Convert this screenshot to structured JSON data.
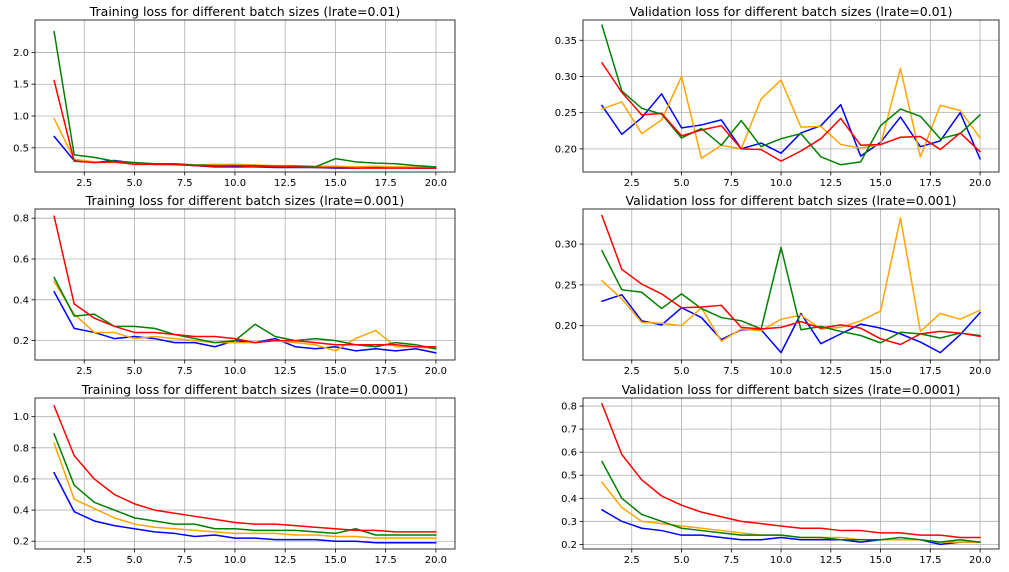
{
  "colors": {
    "blue": "#0000ff",
    "orange": "#ffa500",
    "green": "#008000",
    "red": "#ff0000"
  },
  "chart_data": [
    {
      "type": "line",
      "title": "Training loss for different batch sizes (lrate=0.01)",
      "xlabel": "",
      "ylabel": "",
      "grid": true,
      "xlim": [
        0.05,
        20.95
      ],
      "ylim": [
        0.12,
        2.51
      ],
      "xticks": [
        2.5,
        5.0,
        7.5,
        10.0,
        12.5,
        15.0,
        17.5,
        20.0
      ],
      "xtick_labels": [
        "2.5",
        "5.0",
        "7.5",
        "10.0",
        "12.5",
        "15.0",
        "17.5",
        "20.0"
      ],
      "yticks": [
        0.5,
        1.0,
        1.5,
        2.0
      ],
      "ytick_labels": [
        "0.5",
        "1.0",
        "1.5",
        "2.0"
      ],
      "x": [
        1,
        2,
        3,
        4,
        5,
        6,
        7,
        8,
        9,
        10,
        11,
        12,
        13,
        14,
        15,
        16,
        17,
        18,
        19,
        20
      ],
      "series": [
        {
          "color": "#0000ff",
          "values": [
            0.68,
            0.3,
            0.27,
            0.3,
            0.26,
            0.24,
            0.24,
            0.22,
            0.2,
            0.2,
            0.2,
            0.19,
            0.19,
            0.19,
            0.18,
            0.18,
            0.2,
            0.19,
            0.18,
            0.18
          ]
        },
        {
          "color": "#ffa500",
          "values": [
            0.96,
            0.32,
            0.28,
            0.27,
            0.25,
            0.24,
            0.23,
            0.23,
            0.24,
            0.24,
            0.23,
            0.22,
            0.22,
            0.21,
            0.21,
            0.2,
            0.21,
            0.2,
            0.2,
            0.2
          ]
        },
        {
          "color": "#008000",
          "values": [
            2.33,
            0.39,
            0.35,
            0.29,
            0.27,
            0.25,
            0.25,
            0.23,
            0.22,
            0.22,
            0.22,
            0.21,
            0.21,
            0.2,
            0.33,
            0.28,
            0.26,
            0.25,
            0.22,
            0.2
          ]
        },
        {
          "color": "#ff0000",
          "values": [
            1.56,
            0.29,
            0.27,
            0.28,
            0.24,
            0.24,
            0.24,
            0.22,
            0.21,
            0.22,
            0.2,
            0.2,
            0.2,
            0.19,
            0.19,
            0.18,
            0.18,
            0.18,
            0.18,
            0.18
          ]
        }
      ]
    },
    {
      "type": "line",
      "title": "Validation loss for different batch sizes (lrate=0.01)",
      "xlabel": "",
      "ylabel": "",
      "grid": true,
      "xlim": [
        0.05,
        20.95
      ],
      "ylim": [
        0.168,
        0.378
      ],
      "xticks": [
        2.5,
        5.0,
        7.5,
        10.0,
        12.5,
        15.0,
        17.5,
        20.0
      ],
      "xtick_labels": [
        "2.5",
        "5.0",
        "7.5",
        "10.0",
        "12.5",
        "15.0",
        "17.5",
        "20.0"
      ],
      "yticks": [
        0.2,
        0.25,
        0.3,
        0.35
      ],
      "ytick_labels": [
        "0.20",
        "0.25",
        "0.30",
        "0.35"
      ],
      "x": [
        1,
        2,
        3,
        4,
        5,
        6,
        7,
        8,
        9,
        10,
        11,
        12,
        13,
        14,
        15,
        16,
        17,
        18,
        19,
        20
      ],
      "series": [
        {
          "color": "#0000ff",
          "values": [
            0.26,
            0.22,
            0.243,
            0.276,
            0.229,
            0.233,
            0.24,
            0.2,
            0.208,
            0.194,
            0.222,
            0.232,
            0.261,
            0.19,
            0.209,
            0.244,
            0.203,
            0.211,
            0.25,
            0.186
          ]
        },
        {
          "color": "#ffa500",
          "values": [
            0.255,
            0.265,
            0.221,
            0.24,
            0.3,
            0.187,
            0.205,
            0.2,
            0.269,
            0.295,
            0.23,
            0.231,
            0.206,
            0.201,
            0.206,
            0.311,
            0.189,
            0.26,
            0.253,
            0.215
          ]
        },
        {
          "color": "#008000",
          "values": [
            0.371,
            0.28,
            0.256,
            0.248,
            0.215,
            0.228,
            0.205,
            0.239,
            0.203,
            0.214,
            0.221,
            0.189,
            0.178,
            0.182,
            0.232,
            0.255,
            0.245,
            0.214,
            0.221,
            0.247
          ]
        },
        {
          "color": "#ff0000",
          "values": [
            0.319,
            0.278,
            0.247,
            0.249,
            0.218,
            0.226,
            0.232,
            0.2,
            0.199,
            0.183,
            0.197,
            0.214,
            0.242,
            0.205,
            0.206,
            0.216,
            0.217,
            0.199,
            0.222,
            0.196
          ]
        }
      ]
    },
    {
      "type": "line",
      "title": "Training loss for different batch sizes (lrate=0.001)",
      "xlabel": "",
      "ylabel": "",
      "grid": true,
      "xlim": [
        0.05,
        20.95
      ],
      "ylim": [
        0.105,
        0.845
      ],
      "xticks": [
        2.5,
        5.0,
        7.5,
        10.0,
        12.5,
        15.0,
        17.5,
        20.0
      ],
      "xtick_labels": [
        "2.5",
        "5.0",
        "7.5",
        "10.0",
        "12.5",
        "15.0",
        "17.5",
        "20.0"
      ],
      "yticks": [
        0.2,
        0.4,
        0.6,
        0.8
      ],
      "ytick_labels": [
        "0.2",
        "0.4",
        "0.6",
        "0.8"
      ],
      "x": [
        1,
        2,
        3,
        4,
        5,
        6,
        7,
        8,
        9,
        10,
        11,
        12,
        13,
        14,
        15,
        16,
        17,
        18,
        19,
        20
      ],
      "series": [
        {
          "color": "#0000ff",
          "values": [
            0.44,
            0.26,
            0.24,
            0.21,
            0.22,
            0.21,
            0.19,
            0.19,
            0.17,
            0.2,
            0.19,
            0.21,
            0.17,
            0.16,
            0.17,
            0.15,
            0.16,
            0.15,
            0.16,
            0.14
          ]
        },
        {
          "color": "#ffa500",
          "values": [
            0.49,
            0.33,
            0.24,
            0.24,
            0.21,
            0.22,
            0.21,
            0.2,
            0.19,
            0.19,
            0.19,
            0.2,
            0.19,
            0.18,
            0.15,
            0.21,
            0.25,
            0.17,
            0.17,
            0.16
          ]
        },
        {
          "color": "#008000",
          "values": [
            0.51,
            0.32,
            0.33,
            0.27,
            0.27,
            0.26,
            0.23,
            0.21,
            0.19,
            0.2,
            0.28,
            0.22,
            0.2,
            0.21,
            0.2,
            0.18,
            0.17,
            0.19,
            0.18,
            0.16
          ]
        },
        {
          "color": "#ff0000",
          "values": [
            0.81,
            0.38,
            0.31,
            0.27,
            0.24,
            0.24,
            0.23,
            0.22,
            0.22,
            0.21,
            0.19,
            0.2,
            0.2,
            0.19,
            0.18,
            0.18,
            0.18,
            0.18,
            0.17,
            0.17
          ]
        }
      ]
    },
    {
      "type": "line",
      "title": "Validation loss for different batch sizes (lrate=0.001)",
      "xlabel": "",
      "ylabel": "",
      "grid": true,
      "xlim": [
        0.05,
        20.95
      ],
      "ylim": [
        0.158,
        0.343
      ],
      "xticks": [
        2.5,
        5.0,
        7.5,
        10.0,
        12.5,
        15.0,
        17.5,
        20.0
      ],
      "xtick_labels": [
        "2.5",
        "5.0",
        "7.5",
        "10.0",
        "12.5",
        "15.0",
        "17.5",
        "20.0"
      ],
      "yticks": [
        0.2,
        0.25,
        0.3
      ],
      "ytick_labels": [
        "0.20",
        "0.25",
        "0.30"
      ],
      "x": [
        1,
        2,
        3,
        4,
        5,
        6,
        7,
        8,
        9,
        10,
        11,
        12,
        13,
        14,
        15,
        16,
        17,
        18,
        19,
        20
      ],
      "series": [
        {
          "color": "#0000ff",
          "values": [
            0.23,
            0.238,
            0.206,
            0.201,
            0.222,
            0.21,
            0.183,
            0.195,
            0.195,
            0.167,
            0.215,
            0.178,
            0.19,
            0.202,
            0.197,
            0.19,
            0.18,
            0.167,
            0.189,
            0.216
          ]
        },
        {
          "color": "#ffa500",
          "values": [
            0.255,
            0.233,
            0.204,
            0.203,
            0.2,
            0.222,
            0.181,
            0.196,
            0.194,
            0.208,
            0.213,
            0.196,
            0.198,
            0.206,
            0.218,
            0.332,
            0.193,
            0.215,
            0.208,
            0.219
          ]
        },
        {
          "color": "#008000",
          "values": [
            0.292,
            0.244,
            0.241,
            0.221,
            0.239,
            0.221,
            0.21,
            0.206,
            0.196,
            0.296,
            0.195,
            0.199,
            0.193,
            0.188,
            0.179,
            0.192,
            0.19,
            0.185,
            0.191,
            0.188
          ]
        },
        {
          "color": "#ff0000",
          "values": [
            0.335,
            0.269,
            0.251,
            0.239,
            0.222,
            0.223,
            0.225,
            0.198,
            0.196,
            0.198,
            0.205,
            0.197,
            0.201,
            0.197,
            0.184,
            0.177,
            0.19,
            0.193,
            0.191,
            0.187
          ]
        }
      ]
    },
    {
      "type": "line",
      "title": "Training loss for different batch sizes (lrate=0.0001)",
      "xlabel": "",
      "ylabel": "",
      "grid": true,
      "xlim": [
        0.05,
        20.95
      ],
      "ylim": [
        0.15,
        1.12
      ],
      "xticks": [
        2.5,
        5.0,
        7.5,
        10.0,
        12.5,
        15.0,
        17.5,
        20.0
      ],
      "xtick_labels": [
        "2.5",
        "5.0",
        "7.5",
        "10.0",
        "12.5",
        "15.0",
        "17.5",
        "20.0"
      ],
      "yticks": [
        0.2,
        0.4,
        0.6,
        0.8,
        1.0
      ],
      "ytick_labels": [
        "0.2",
        "0.4",
        "0.6",
        "0.8",
        "1.0"
      ],
      "x": [
        1,
        2,
        3,
        4,
        5,
        6,
        7,
        8,
        9,
        10,
        11,
        12,
        13,
        14,
        15,
        16,
        17,
        18,
        19,
        20
      ],
      "series": [
        {
          "color": "#0000ff",
          "values": [
            0.64,
            0.39,
            0.33,
            0.3,
            0.28,
            0.26,
            0.25,
            0.23,
            0.24,
            0.22,
            0.22,
            0.21,
            0.21,
            0.21,
            0.2,
            0.2,
            0.19,
            0.19,
            0.19,
            0.19
          ]
        },
        {
          "color": "#ffa500",
          "values": [
            0.83,
            0.47,
            0.41,
            0.35,
            0.31,
            0.29,
            0.28,
            0.27,
            0.26,
            0.25,
            0.25,
            0.25,
            0.24,
            0.24,
            0.23,
            0.23,
            0.22,
            0.22,
            0.22,
            0.22
          ]
        },
        {
          "color": "#008000",
          "values": [
            0.89,
            0.56,
            0.45,
            0.4,
            0.35,
            0.33,
            0.31,
            0.31,
            0.28,
            0.28,
            0.27,
            0.27,
            0.27,
            0.26,
            0.25,
            0.28,
            0.24,
            0.24,
            0.24,
            0.24
          ]
        },
        {
          "color": "#ff0000",
          "values": [
            1.07,
            0.75,
            0.6,
            0.5,
            0.44,
            0.4,
            0.38,
            0.36,
            0.34,
            0.32,
            0.31,
            0.31,
            0.3,
            0.29,
            0.28,
            0.27,
            0.27,
            0.26,
            0.26,
            0.26
          ]
        }
      ]
    },
    {
      "type": "line",
      "title": "Validation loss for different batch sizes (lrate=0.0001)",
      "xlabel": "",
      "ylabel": "",
      "grid": true,
      "xlim": [
        0.05,
        20.95
      ],
      "ylim": [
        0.18,
        0.835
      ],
      "xticks": [
        2.5,
        5.0,
        7.5,
        10.0,
        12.5,
        15.0,
        17.5,
        20.0
      ],
      "xtick_labels": [
        "2.5",
        "5.0",
        "7.5",
        "10.0",
        "12.5",
        "15.0",
        "17.5",
        "20.0"
      ],
      "yticks": [
        0.2,
        0.3,
        0.4,
        0.5,
        0.6,
        0.7,
        0.8
      ],
      "ytick_labels": [
        "0.2",
        "0.3",
        "0.4",
        "0.5",
        "0.6",
        "0.7",
        "0.8"
      ],
      "x": [
        1,
        2,
        3,
        4,
        5,
        6,
        7,
        8,
        9,
        10,
        11,
        12,
        13,
        14,
        15,
        16,
        17,
        18,
        19,
        20
      ],
      "series": [
        {
          "color": "#0000ff",
          "values": [
            0.35,
            0.3,
            0.27,
            0.26,
            0.24,
            0.24,
            0.23,
            0.22,
            0.22,
            0.23,
            0.22,
            0.22,
            0.22,
            0.21,
            0.22,
            0.22,
            0.22,
            0.2,
            0.21,
            0.21
          ]
        },
        {
          "color": "#ffa500",
          "values": [
            0.47,
            0.36,
            0.3,
            0.29,
            0.28,
            0.27,
            0.26,
            0.25,
            0.24,
            0.24,
            0.23,
            0.23,
            0.23,
            0.22,
            0.22,
            0.22,
            0.22,
            0.21,
            0.21,
            0.21
          ]
        },
        {
          "color": "#008000",
          "values": [
            0.56,
            0.4,
            0.33,
            0.3,
            0.27,
            0.26,
            0.25,
            0.24,
            0.24,
            0.24,
            0.23,
            0.23,
            0.22,
            0.22,
            0.22,
            0.23,
            0.22,
            0.21,
            0.22,
            0.21
          ]
        },
        {
          "color": "#ff0000",
          "values": [
            0.81,
            0.59,
            0.48,
            0.41,
            0.37,
            0.34,
            0.32,
            0.3,
            0.29,
            0.28,
            0.27,
            0.27,
            0.26,
            0.26,
            0.25,
            0.25,
            0.24,
            0.24,
            0.23,
            0.23
          ]
        }
      ]
    }
  ]
}
